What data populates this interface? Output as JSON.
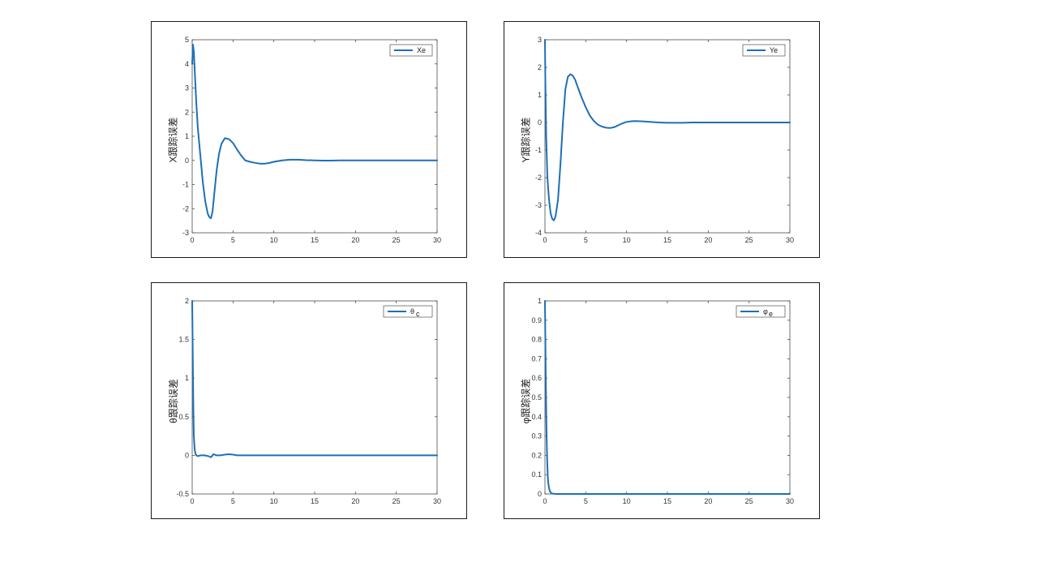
{
  "colors": {
    "line": "#1f6fb7",
    "axis": "#4d4d4d",
    "frame": "#1a1a1a"
  },
  "chart_data": [
    {
      "type": "line",
      "ylabel": "X跟踪误差",
      "xlabel": "",
      "legend": "Xe",
      "legend_sub": "",
      "legend_position": "top-right",
      "grid": false,
      "xlim": [
        0,
        30
      ],
      "ylim": [
        -3,
        5
      ],
      "xticks": [
        0,
        5,
        10,
        15,
        20,
        25,
        30
      ],
      "yticks": [
        -3,
        -2,
        -1,
        0,
        1,
        2,
        3,
        4,
        5
      ],
      "series": [
        {
          "x": [
            0,
            0.1,
            0.2,
            0.3,
            0.5,
            0.7,
            1.0,
            1.3,
            1.6,
            1.9,
            2.1,
            2.3,
            2.5,
            2.7,
            3.0,
            3.3,
            3.6,
            4.0,
            4.5,
            5.0,
            5.5,
            6.0,
            6.5,
            7.0,
            7.5,
            8.0,
            8.5,
            9.0,
            9.5,
            10.0,
            10.5,
            11.0,
            12.0,
            13.0,
            14.0,
            15.0,
            16.0,
            17.0,
            18.0,
            20.0,
            22.0,
            25.0,
            28.0,
            30.0
          ],
          "y": [
            4.0,
            4.8,
            4.5,
            3.8,
            2.4,
            1.3,
            0.2,
            -0.9,
            -1.7,
            -2.2,
            -2.35,
            -2.4,
            -2.1,
            -1.4,
            -0.4,
            0.3,
            0.7,
            0.92,
            0.88,
            0.72,
            0.45,
            0.2,
            0.0,
            -0.05,
            -0.09,
            -0.12,
            -0.14,
            -0.13,
            -0.1,
            -0.06,
            -0.03,
            0.0,
            0.03,
            0.03,
            0.01,
            0.0,
            -0.01,
            -0.01,
            0.0,
            0.0,
            0.0,
            0.0,
            0.0,
            0.0
          ]
        }
      ]
    },
    {
      "type": "line",
      "ylabel": "Y跟踪误差",
      "xlabel": "",
      "legend": "Ye",
      "legend_sub": "",
      "legend_position": "top-right",
      "grid": false,
      "xlim": [
        0,
        30
      ],
      "ylim": [
        -4,
        3
      ],
      "xticks": [
        0,
        5,
        10,
        15,
        20,
        25,
        30
      ],
      "yticks": [
        -4,
        -3,
        -2,
        -1,
        0,
        1,
        2,
        3
      ],
      "series": [
        {
          "x": [
            0,
            0.05,
            0.15,
            0.3,
            0.5,
            0.7,
            0.9,
            1.1,
            1.3,
            1.6,
            1.9,
            2.2,
            2.5,
            2.8,
            3.1,
            3.4,
            3.7,
            4.0,
            4.5,
            5.0,
            5.5,
            6.0,
            6.5,
            7.0,
            7.5,
            8.0,
            8.5,
            9.0,
            9.5,
            10.0,
            10.5,
            11.0,
            12.0,
            13.0,
            14.0,
            15.0,
            16.0,
            17.0,
            18.0,
            20.0,
            22.0,
            25.0,
            28.0,
            30.0
          ],
          "y": [
            3.0,
            1.5,
            -0.5,
            -2.0,
            -2.8,
            -3.3,
            -3.5,
            -3.55,
            -3.4,
            -2.8,
            -1.5,
            0.0,
            1.2,
            1.65,
            1.75,
            1.7,
            1.55,
            1.3,
            0.9,
            0.55,
            0.25,
            0.05,
            -0.08,
            -0.15,
            -0.19,
            -0.2,
            -0.17,
            -0.1,
            -0.03,
            0.02,
            0.04,
            0.05,
            0.04,
            0.02,
            0.0,
            -0.01,
            -0.01,
            -0.01,
            0.0,
            0.0,
            0.0,
            0.0,
            0.0,
            0.0
          ]
        }
      ]
    },
    {
      "type": "line",
      "ylabel": "θ跟踪误差",
      "xlabel": "",
      "legend": "θ",
      "legend_sub": "c",
      "legend_position": "top-right",
      "grid": false,
      "xlim": [
        0,
        30
      ],
      "ylim": [
        -0.5,
        2
      ],
      "xticks": [
        0,
        5,
        10,
        15,
        20,
        25,
        30
      ],
      "yticks": [
        -0.5,
        0,
        0.5,
        1,
        1.5,
        2
      ],
      "series": [
        {
          "x": [
            0,
            0.05,
            0.1,
            0.15,
            0.2,
            0.3,
            0.4,
            0.5,
            0.7,
            1.0,
            1.5,
            2.0,
            2.3,
            2.6,
            3.0,
            3.5,
            4.0,
            4.5,
            5.0,
            5.5,
            6.0,
            7.0,
            8.0,
            10.0,
            15.0,
            20.0,
            25.0,
            30.0
          ],
          "y": [
            2.0,
            1.5,
            1.0,
            0.55,
            0.25,
            0.08,
            0.02,
            0.0,
            -0.01,
            0.0,
            0.0,
            -0.01,
            -0.025,
            0.015,
            0.0,
            0.0,
            0.01,
            0.015,
            0.01,
            0.0,
            0.0,
            0.0,
            0.0,
            0.0,
            0.0,
            0.0,
            0.0,
            0.0
          ]
        }
      ]
    },
    {
      "type": "line",
      "ylabel": "φ跟踪误差",
      "xlabel": "",
      "legend": "φ",
      "legend_sub": "e",
      "legend_position": "top-right",
      "grid": false,
      "xlim": [
        0,
        30
      ],
      "ylim": [
        0,
        1
      ],
      "xticks": [
        0,
        5,
        10,
        15,
        20,
        25,
        30
      ],
      "yticks": [
        0,
        0.1,
        0.2,
        0.3,
        0.4,
        0.5,
        0.6,
        0.7,
        0.8,
        0.9,
        1
      ],
      "series": [
        {
          "x": [
            0,
            0.05,
            0.1,
            0.15,
            0.2,
            0.25,
            0.3,
            0.35,
            0.4,
            0.5,
            0.6,
            0.7,
            0.8,
            1.0,
            1.5,
            2.0,
            5.0,
            10.0,
            20.0,
            30.0
          ],
          "y": [
            1.0,
            0.8,
            0.6,
            0.44,
            0.31,
            0.21,
            0.14,
            0.09,
            0.06,
            0.03,
            0.015,
            0.008,
            0.004,
            0.001,
            0.0,
            0.0,
            0.0,
            0.0,
            0.0,
            0.0
          ]
        }
      ]
    }
  ]
}
